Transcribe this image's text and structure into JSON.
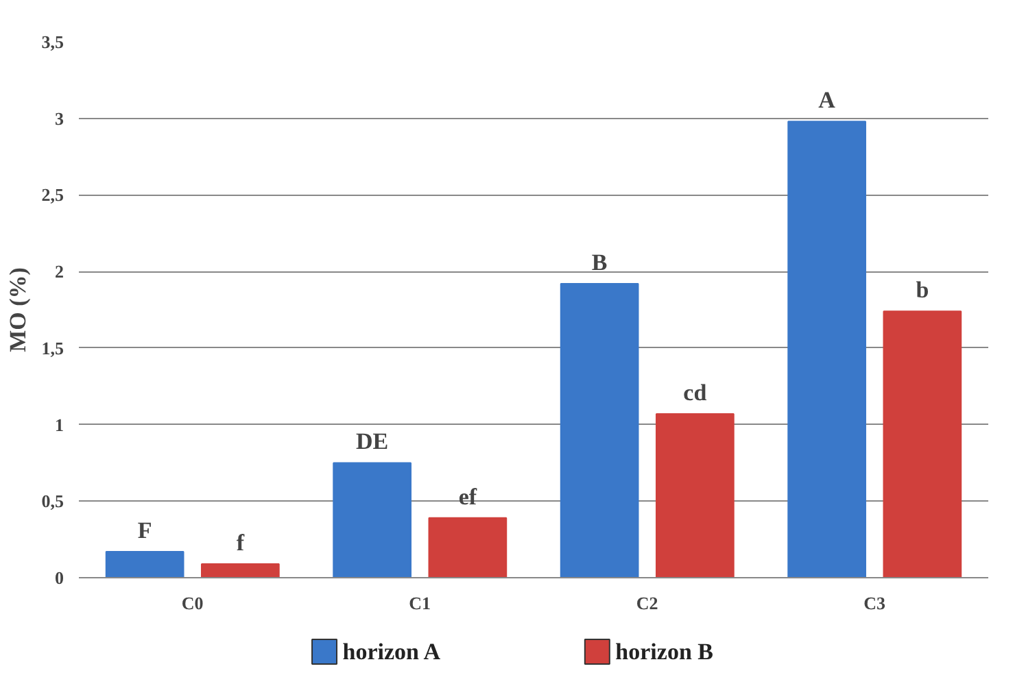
{
  "chart_data": {
    "type": "bar",
    "ylabel": "MO (%)",
    "categories": [
      "C0",
      "C1",
      "C2",
      "C3"
    ],
    "series": [
      {
        "name": "horizon A",
        "color": "#3a78c9",
        "values": [
          0.17,
          0.75,
          1.92,
          2.98
        ]
      },
      {
        "name": "horizon B",
        "color": "#d0403c",
        "values": [
          0.09,
          0.39,
          1.07,
          1.74
        ]
      }
    ],
    "ylim": [
      0,
      3.5
    ],
    "yticks": [
      0,
      {
        "value": 0.5,
        "label": "0,5"
      },
      1,
      {
        "value": 1.5,
        "label": "1,5"
      },
      2,
      {
        "value": 2.5,
        "label": "2,5"
      },
      3,
      {
        "value": 3.5,
        "label": "3,5"
      }
    ],
    "grid": "y",
    "legend": "bottom",
    "annotations": [
      "F",
      "f",
      "DE",
      "ef",
      "B",
      "cd",
      "A",
      "b"
    ]
  }
}
